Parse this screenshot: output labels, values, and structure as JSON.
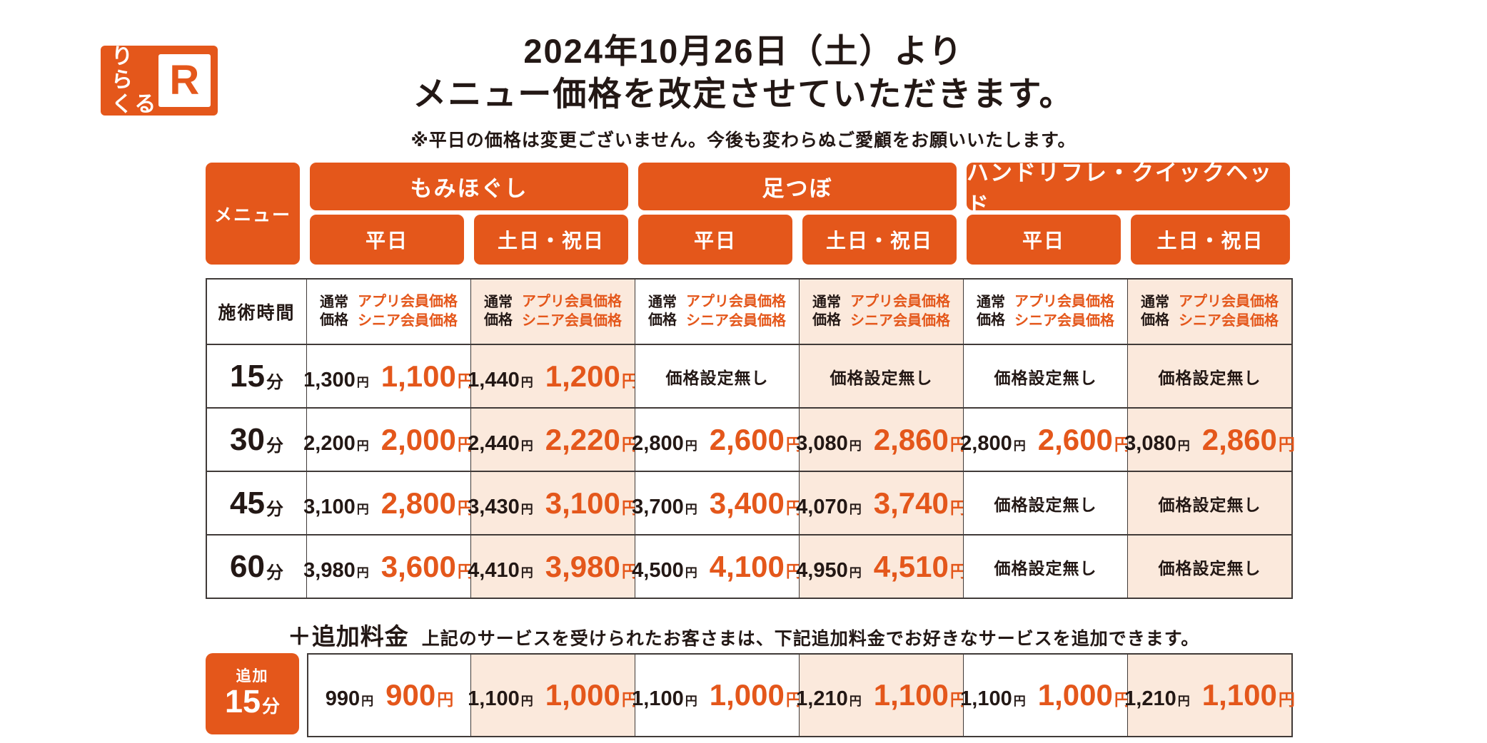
{
  "logo": {
    "kana_line1": "りら",
    "kana_line2": "くる",
    "r_mark": "R"
  },
  "title": {
    "line1": "2024年10月26日（土）より",
    "line2": "メニュー価格を改定させていただきます。",
    "note": "※平日の価格は変更ございません。今後も変わらぬご愛顧をお願いいたします。"
  },
  "colors": {
    "brand_orange": "#E4571B",
    "weekend_column_bg": "#FBE9DC",
    "ink": "#231815"
  },
  "table": {
    "menu_label": "メニュー",
    "categories": [
      "もみほぐし",
      "足つぼ",
      "ハンドリフレ・クイックヘッド"
    ],
    "day_labels": [
      "平日",
      "土日・祝日",
      "平日",
      "土日・祝日",
      "平日",
      "土日・祝日"
    ],
    "time_header": "施術時間",
    "normal_label_lines": [
      "通常",
      "価格"
    ],
    "member_label_lines": [
      "アプリ会員価格",
      "シニア会員価格"
    ],
    "yen_suffix": "円",
    "no_price_text": "価格設定無し",
    "time_unit": "分",
    "rows": [
      {
        "time": "15",
        "cells": [
          {
            "normal": "1,300",
            "member": "1,100"
          },
          {
            "normal": "1,440",
            "member": "1,200"
          },
          {
            "none": true
          },
          {
            "none": true
          },
          {
            "none": true
          },
          {
            "none": true
          }
        ]
      },
      {
        "time": "30",
        "cells": [
          {
            "normal": "2,200",
            "member": "2,000"
          },
          {
            "normal": "2,440",
            "member": "2,220"
          },
          {
            "normal": "2,800",
            "member": "2,600"
          },
          {
            "normal": "3,080",
            "member": "2,860"
          },
          {
            "normal": "2,800",
            "member": "2,600"
          },
          {
            "normal": "3,080",
            "member": "2,860"
          }
        ]
      },
      {
        "time": "45",
        "cells": [
          {
            "normal": "3,100",
            "member": "2,800"
          },
          {
            "normal": "3,430",
            "member": "3,100"
          },
          {
            "normal": "3,700",
            "member": "3,400"
          },
          {
            "normal": "4,070",
            "member": "3,740"
          },
          {
            "none": true
          },
          {
            "none": true
          }
        ]
      },
      {
        "time": "60",
        "cells": [
          {
            "normal": "3,980",
            "member": "3,600"
          },
          {
            "normal": "4,410",
            "member": "3,980"
          },
          {
            "normal": "4,500",
            "member": "4,100"
          },
          {
            "normal": "4,950",
            "member": "4,510"
          },
          {
            "none": true
          },
          {
            "none": true
          }
        ]
      }
    ]
  },
  "addon": {
    "plus_label": "＋追加料金",
    "description": "上記のサービスを受けられたお客さまは、下記追加料金でお好きなサービスを追加できます。",
    "time_small": "追加",
    "time_big": "15",
    "time_unit": "分",
    "cells": [
      {
        "normal": "990",
        "member": "900"
      },
      {
        "normal": "1,100",
        "member": "1,000"
      },
      {
        "normal": "1,100",
        "member": "1,000"
      },
      {
        "normal": "1,210",
        "member": "1,100"
      },
      {
        "normal": "1,100",
        "member": "1,000"
      },
      {
        "normal": "1,210",
        "member": "1,100"
      }
    ]
  }
}
